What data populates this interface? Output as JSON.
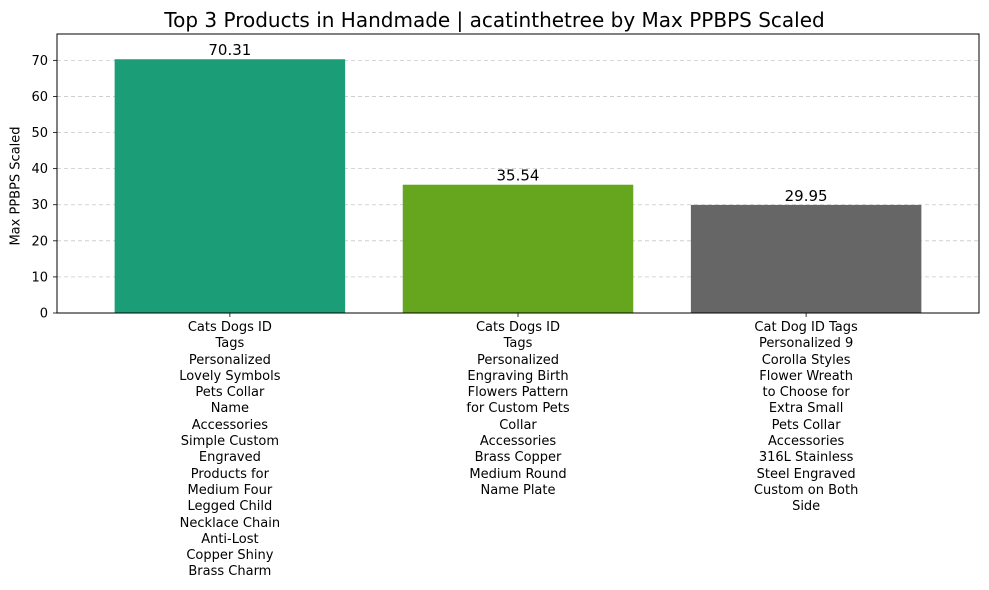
{
  "chart_data": {
    "type": "bar",
    "title": "Top 3 Products in Handmade | acatinthetree by Max PPBPS Scaled",
    "xlabel": "",
    "ylabel": "Max PPBPS Scaled",
    "ylim": [
      0,
      77.3
    ],
    "yticks": [
      0,
      10,
      20,
      30,
      40,
      50,
      60,
      70
    ],
    "grid": "y-dashed",
    "categories": [
      "Cats Dogs ID Tags Personalized Lovely Symbols Pets Collar Name Accessories Simple Custom Engraved Products for Medium Four Legged Child Necklace Chain Anti-Lost Copper Shiny Brass Charm",
      "Cats Dogs ID Tags Personalized Engraving Birth Flowers Pattern for Custom Pets Collar Accessories Brass Copper Medium Round Name Plate",
      "Cat Dog ID Tags Personalized 9 Corolla Styles Flower Wreath to Choose for Extra Small Pets Collar Accessories 316L Stainless Steel Engraved Custom on Both Side"
    ],
    "category_lines": [
      [
        "Cats Dogs ID",
        "Tags",
        "Personalized",
        "Lovely Symbols",
        "Pets Collar",
        "Name",
        "Accessories",
        "Simple Custom",
        "Engraved",
        "Products for",
        "Medium Four",
        "Legged Child",
        "Necklace Chain",
        "Anti-Lost",
        "Copper Shiny",
        "Brass Charm"
      ],
      [
        "Cats Dogs ID",
        "Tags",
        "Personalized",
        "Engraving Birth",
        "Flowers Pattern",
        "for Custom Pets",
        "Collar",
        "Accessories",
        "Brass Copper",
        "Medium Round",
        "Name Plate"
      ],
      [
        "Cat Dog ID Tags",
        "Personalized 9",
        "Corolla Styles",
        "Flower Wreath",
        "to Choose for",
        "Extra Small",
        "Pets Collar",
        "Accessories",
        "316L Stainless",
        "Steel Engraved",
        "Custom on Both",
        "Side"
      ]
    ],
    "values": [
      70.31,
      35.54,
      29.95
    ],
    "value_labels": [
      "70.31",
      "35.54",
      "29.95"
    ],
    "colors": [
      "#1b9e77",
      "#66a61e",
      "#666666"
    ]
  }
}
